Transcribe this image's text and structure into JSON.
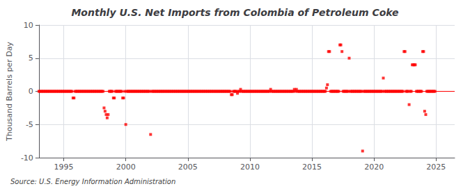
{
  "chart_data": {
    "type": "scatter",
    "title": "Monthly U.S. Net Imports from Colombia of Petroleum Coke",
    "ylabel": "Thousand Barrels per Day",
    "annotation": "Source: U.S. Energy Information Administration",
    "color": "#ff0000",
    "marker": "square",
    "hline": {
      "y": 0,
      "color": "#ff0000"
    },
    "xlim": [
      1993.0,
      2026.5
    ],
    "xticks": [
      1995,
      2000,
      2005,
      2010,
      2015,
      2020,
      2025
    ],
    "ylim": [
      -10,
      10
    ],
    "yticks": [
      -10,
      -5,
      0,
      5,
      10
    ],
    "grid": true,
    "x": [
      1993.0,
      1993.08,
      1993.17,
      1993.25,
      1993.33,
      1993.42,
      1993.5,
      1993.58,
      1993.67,
      1993.75,
      1993.83,
      1993.92,
      1994.0,
      1994.08,
      1994.17,
      1994.25,
      1994.33,
      1994.42,
      1994.5,
      1994.58,
      1994.67,
      1994.75,
      1994.83,
      1994.92,
      1995.0,
      1995.08,
      1995.17,
      1995.25,
      1995.33,
      1995.42,
      1995.5,
      1995.58,
      1995.67,
      1995.75,
      1995.83,
      1995.92,
      1996.0,
      1996.08,
      1996.17,
      1996.25,
      1996.33,
      1996.42,
      1996.5,
      1996.58,
      1996.67,
      1996.75,
      1996.83,
      1996.92,
      1997.0,
      1997.08,
      1997.17,
      1997.25,
      1997.33,
      1997.42,
      1997.5,
      1997.58,
      1997.67,
      1997.75,
      1997.83,
      1997.92,
      1998.0,
      1998.08,
      1998.17,
      1998.25,
      1998.33,
      1998.42,
      1998.5,
      1998.58,
      1998.67,
      1998.75,
      1998.83,
      1998.92,
      1999.0,
      1999.08,
      1999.17,
      1999.25,
      1999.33,
      1999.42,
      1999.5,
      1999.58,
      1999.67,
      1999.75,
      1999.83,
      1999.92,
      2000.0,
      2000.08,
      2000.17,
      2000.25,
      2000.33,
      2000.42,
      2000.5,
      2000.58,
      2000.67,
      2000.75,
      2000.83,
      2000.92,
      2001.0,
      2001.08,
      2001.17,
      2001.25,
      2001.33,
      2001.42,
      2001.5,
      2001.58,
      2001.67,
      2001.75,
      2001.83,
      2001.92,
      2002.0,
      2002.08,
      2002.17,
      2002.25,
      2002.33,
      2002.42,
      2002.5,
      2002.58,
      2002.67,
      2002.75,
      2002.83,
      2002.92,
      2003.0,
      2003.08,
      2003.17,
      2003.25,
      2003.33,
      2003.42,
      2003.5,
      2003.58,
      2003.67,
      2003.75,
      2003.83,
      2003.92,
      2004.0,
      2004.08,
      2004.17,
      2004.25,
      2004.33,
      2004.42,
      2004.5,
      2004.58,
      2004.67,
      2004.75,
      2004.83,
      2004.92,
      2005.0,
      2005.08,
      2005.17,
      2005.25,
      2005.33,
      2005.42,
      2005.5,
      2005.58,
      2005.67,
      2005.75,
      2005.83,
      2005.92,
      2006.0,
      2006.08,
      2006.17,
      2006.25,
      2006.33,
      2006.42,
      2006.5,
      2006.58,
      2006.67,
      2006.75,
      2006.83,
      2006.92,
      2007.0,
      2007.08,
      2007.17,
      2007.25,
      2007.33,
      2007.42,
      2007.5,
      2007.58,
      2007.67,
      2007.75,
      2007.83,
      2007.92,
      2008.0,
      2008.08,
      2008.17,
      2008.25,
      2008.33,
      2008.42,
      2008.5,
      2008.58,
      2008.67,
      2008.75,
      2008.83,
      2008.92,
      2009.0,
      2009.08,
      2009.17,
      2009.25,
      2009.33,
      2009.42,
      2009.5,
      2009.58,
      2009.67,
      2009.75,
      2009.83,
      2009.92,
      2010.0,
      2010.08,
      2010.17,
      2010.25,
      2010.33,
      2010.42,
      2010.5,
      2010.58,
      2010.67,
      2010.75,
      2010.83,
      2010.92,
      2011.0,
      2011.08,
      2011.17,
      2011.25,
      2011.33,
      2011.42,
      2011.5,
      2011.58,
      2011.67,
      2011.75,
      2011.83,
      2011.92,
      2012.0,
      2012.08,
      2012.17,
      2012.25,
      2012.33,
      2012.42,
      2012.5,
      2012.58,
      2012.67,
      2012.75,
      2012.83,
      2012.92,
      2013.0,
      2013.08,
      2013.17,
      2013.25,
      2013.33,
      2013.42,
      2013.5,
      2013.58,
      2013.67,
      2013.75,
      2013.83,
      2013.92,
      2014.0,
      2014.08,
      2014.17,
      2014.25,
      2014.33,
      2014.42,
      2014.5,
      2014.58,
      2014.67,
      2014.75,
      2014.83,
      2014.92,
      2015.0,
      2015.08,
      2015.17,
      2015.25,
      2015.33,
      2015.42,
      2015.5,
      2015.58,
      2015.67,
      2015.75,
      2015.83,
      2015.92,
      2016.0,
      2016.08,
      2016.17,
      2016.25,
      2016.33,
      2016.42,
      2016.5,
      2016.58,
      2016.67,
      2016.75,
      2016.83,
      2016.92,
      2017.0,
      2017.08,
      2017.17,
      2017.25,
      2017.33,
      2017.42,
      2017.5,
      2017.58,
      2017.67,
      2017.75,
      2017.83,
      2017.92,
      2018.0,
      2018.08,
      2018.17,
      2018.25,
      2018.33,
      2018.42,
      2018.5,
      2018.58,
      2018.67,
      2018.75,
      2018.83,
      2018.92,
      2019.0,
      2019.08,
      2019.17,
      2019.25,
      2019.33,
      2019.42,
      2019.5,
      2019.58,
      2019.67,
      2019.75,
      2019.83,
      2019.92,
      2020.0,
      2020.08,
      2020.17,
      2020.25,
      2020.33,
      2020.42,
      2020.5,
      2020.58,
      2020.67,
      2020.75,
      2020.83,
      2020.92,
      2021.0,
      2021.08,
      2021.17,
      2021.25,
      2021.33,
      2021.42,
      2021.5,
      2021.58,
      2021.67,
      2021.75,
      2021.83,
      2021.92,
      2022.0,
      2022.08,
      2022.17,
      2022.25,
      2022.33,
      2022.42,
      2022.5,
      2022.58,
      2022.67,
      2022.75,
      2022.83,
      2022.92,
      2023.0,
      2023.08,
      2023.17,
      2023.25,
      2023.33,
      2023.42,
      2023.5,
      2023.58,
      2023.67,
      2023.75,
      2023.83,
      2023.92,
      2024.0,
      2024.08,
      2024.17,
      2024.25,
      2024.33,
      2024.42,
      2024.5,
      2024.58,
      2024.67,
      2024.75,
      2024.83,
      2024.92
    ],
    "values": [
      0,
      0,
      0,
      0,
      0,
      0,
      0,
      0,
      0,
      0,
      0,
      0,
      0,
      0,
      0,
      0,
      0,
      0,
      0,
      0,
      0,
      0,
      0,
      0,
      0,
      0,
      0,
      0,
      0,
      0,
      0,
      0,
      0,
      -1,
      -1,
      0,
      0,
      0,
      0,
      0,
      0,
      0,
      0,
      0,
      0,
      0,
      0,
      0,
      0,
      0,
      0,
      0,
      0,
      0,
      0,
      0,
      0,
      0,
      0,
      0,
      0,
      0,
      0,
      -2.5,
      -3,
      -3.5,
      -4,
      -3.5,
      0,
      0,
      0,
      0,
      -1,
      -1,
      0,
      0,
      0,
      0,
      0,
      0,
      0,
      -1,
      -1,
      0,
      -5,
      0,
      0,
      0,
      0,
      0,
      0,
      0,
      0,
      0,
      0,
      0,
      0,
      0,
      0,
      0,
      0,
      0,
      0,
      0,
      0,
      0,
      0,
      0,
      -6.5,
      0,
      0,
      0,
      0,
      0,
      0,
      0,
      0,
      0,
      0,
      0,
      0,
      0,
      0,
      0,
      0,
      0,
      0,
      0,
      0,
      0,
      0,
      0,
      0,
      0,
      0,
      0,
      0,
      0,
      0,
      0,
      0,
      0,
      0,
      0,
      0,
      0,
      0,
      0,
      0,
      0,
      0,
      0,
      0,
      0,
      0,
      0,
      0,
      0,
      0,
      0,
      0,
      0,
      0,
      0,
      0,
      0,
      0,
      0,
      0,
      0,
      0,
      0,
      0,
      0,
      0,
      0,
      0,
      0,
      0,
      0,
      0,
      0,
      0,
      0,
      0,
      0,
      -0.5,
      -0.5,
      0,
      0,
      0,
      0,
      -0.3,
      0,
      0,
      0.3,
      0,
      0,
      0,
      0,
      0,
      0,
      0,
      0,
      0,
      0,
      0,
      0,
      0,
      0,
      0,
      0,
      0,
      0,
      0,
      0,
      0,
      0,
      0,
      0,
      0,
      0,
      0,
      0,
      0.3,
      0,
      0,
      0,
      0,
      0,
      0,
      0,
      0,
      0,
      0,
      0,
      0,
      0,
      0,
      0,
      0,
      0,
      0,
      0,
      0,
      0,
      0,
      0.3,
      0,
      0.3,
      0,
      0,
      0,
      0,
      0,
      0,
      0,
      0,
      0,
      0,
      0,
      0,
      0,
      0,
      0,
      0,
      0,
      0,
      0,
      0,
      0,
      0,
      0,
      0,
      0,
      0,
      0,
      0,
      0.5,
      1,
      6,
      6,
      0,
      0,
      0,
      0,
      0,
      0,
      0,
      0,
      0,
      7,
      7,
      6,
      0,
      0,
      0,
      0,
      0,
      0,
      5,
      0,
      0,
      0,
      0,
      0,
      0,
      0,
      0,
      0,
      0,
      0,
      0,
      -9,
      0,
      0,
      0,
      0,
      0,
      0,
      0,
      0,
      0,
      0,
      0,
      0,
      0,
      0,
      0,
      0,
      0,
      0,
      0,
      2,
      0,
      0,
      0,
      0,
      0,
      0,
      0,
      0,
      0,
      0,
      0,
      0,
      0,
      0,
      0,
      0,
      0,
      0,
      0,
      6,
      6,
      0,
      0,
      0,
      -2,
      0,
      0,
      4,
      4,
      4,
      4,
      0,
      0,
      0,
      0,
      0,
      0,
      6,
      6,
      -3,
      -3.5,
      0,
      0,
      0,
      0,
      0,
      0,
      0,
      0,
      0
    ]
  }
}
